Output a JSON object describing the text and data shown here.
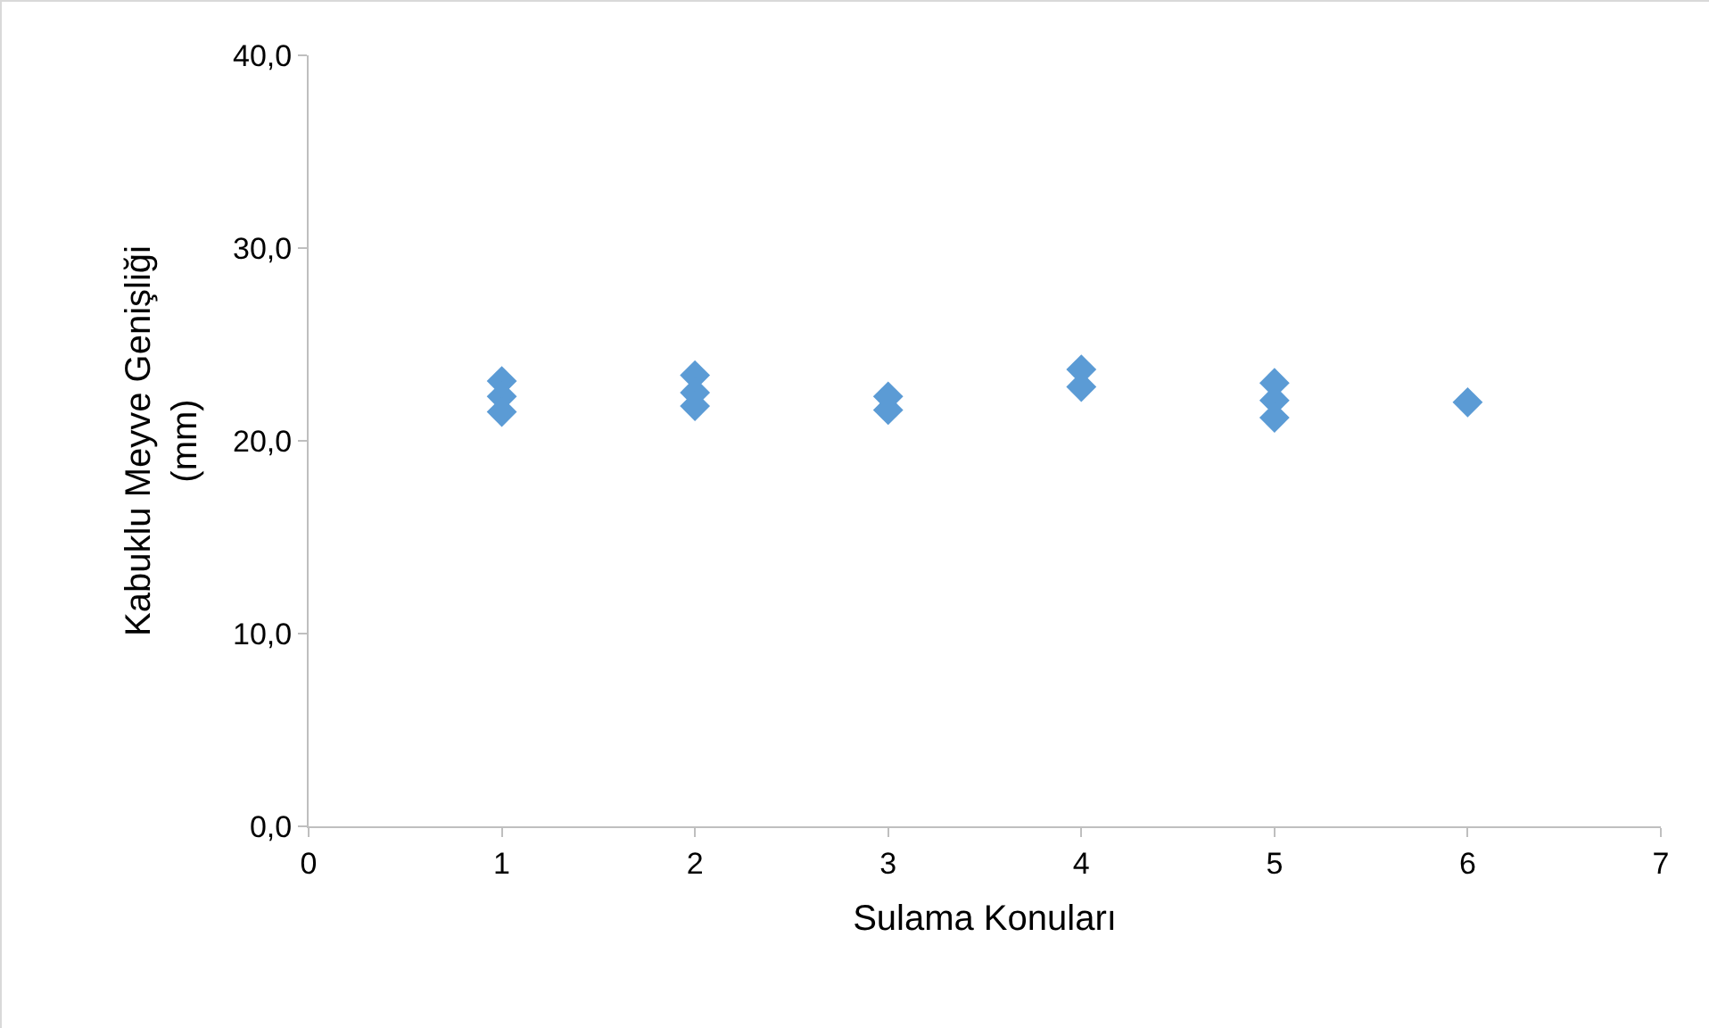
{
  "chart_data": {
    "type": "scatter",
    "xlabel": "Sulama Konuları",
    "ylabel": "Kabuklu Meyve Genişliği (mm)",
    "x": [
      1,
      1,
      1,
      2,
      2,
      2,
      3,
      3,
      4,
      4,
      5,
      5,
      5,
      6
    ],
    "series": [
      {
        "color": "#5b9bd5",
        "values": [
          23.1,
          22.3,
          21.5,
          23.4,
          22.5,
          21.8,
          22.3,
          21.6,
          23.7,
          22.8,
          23.0,
          22.1,
          21.2,
          22.0
        ]
      }
    ],
    "xlim": [
      0,
      7
    ],
    "xticks": [
      0,
      1,
      2,
      3,
      4,
      5,
      6,
      7
    ],
    "ylim": [
      0,
      40
    ],
    "yticks": [
      {
        "value": 0,
        "label": "0,0"
      },
      {
        "value": 10,
        "label": "10,0"
      },
      {
        "value": 20,
        "label": "20,0"
      },
      {
        "value": 30,
        "label": "30,0"
      },
      {
        "value": 40,
        "label": "40,0"
      }
    ],
    "marker": "diamond",
    "grid": false,
    "legend": false
  }
}
